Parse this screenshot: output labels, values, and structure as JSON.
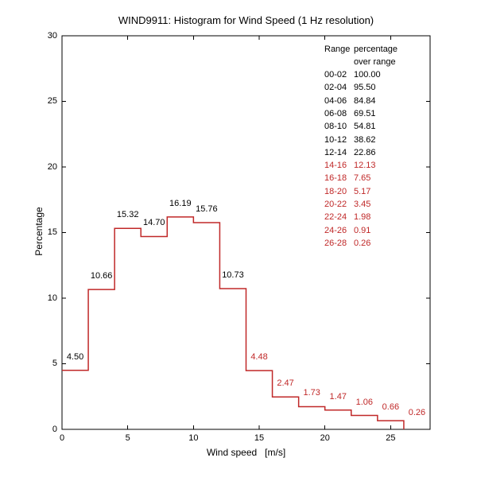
{
  "chart_data": {
    "type": "bar",
    "subtype": "stairs-histogram",
    "title": "WIND9911: Histogram for Wind Speed (1 Hz resolution)",
    "xlabel": "Wind speed   [m/s]",
    "ylabel": "Percentage",
    "xlim": [
      0,
      28
    ],
    "ylim": [
      0,
      30
    ],
    "xticks": [
      0,
      5,
      10,
      15,
      20,
      25
    ],
    "yticks": [
      0,
      5,
      10,
      15,
      20,
      25,
      30
    ],
    "grid": false,
    "bin_width": 2,
    "categories": [
      "00-02",
      "02-04",
      "04-06",
      "06-08",
      "08-10",
      "10-12",
      "12-14",
      "14-16",
      "16-18",
      "18-20",
      "20-22",
      "22-24",
      "24-26",
      "26-28"
    ],
    "values": [
      4.5,
      10.66,
      15.32,
      14.7,
      16.19,
      15.76,
      10.73,
      4.48,
      2.47,
      1.73,
      1.47,
      1.06,
      0.66,
      0.26
    ],
    "bar_labels": [
      "4.50",
      "10.66",
      "15.32",
      "14.70",
      "16.19",
      "15.76",
      "10.73",
      "4.48",
      "2.47",
      "1.73",
      "1.47",
      "1.06",
      "0.66",
      "0.26"
    ],
    "bar_label_colors": [
      "black",
      "black",
      "black",
      "black",
      "black",
      "black",
      "black",
      "red",
      "red",
      "red",
      "red",
      "red",
      "red",
      "red"
    ],
    "drawn_bins": 13,
    "line_color": "#c02828",
    "red_text_color": "#c02828",
    "black_text_color": "#000000",
    "legend_table": {
      "position": "top-right",
      "header_col1": "Range",
      "header_col2": "percentage",
      "header_line2": "over range",
      "rows": [
        {
          "range": "00-02",
          "value": "100.00",
          "color": "black"
        },
        {
          "range": "02-04",
          "value": "95.50",
          "color": "black"
        },
        {
          "range": "04-06",
          "value": "84.84",
          "color": "black"
        },
        {
          "range": "06-08",
          "value": "69.51",
          "color": "black"
        },
        {
          "range": "08-10",
          "value": "54.81",
          "color": "black"
        },
        {
          "range": "10-12",
          "value": "38.62",
          "color": "black"
        },
        {
          "range": "12-14",
          "value": "22.86",
          "color": "black"
        },
        {
          "range": "14-16",
          "value": "12.13",
          "color": "red"
        },
        {
          "range": "16-18",
          "value": "7.65",
          "color": "red"
        },
        {
          "range": "18-20",
          "value": "5.17",
          "color": "red"
        },
        {
          "range": "20-22",
          "value": "3.45",
          "color": "red"
        },
        {
          "range": "22-24",
          "value": "1.98",
          "color": "red"
        },
        {
          "range": "24-26",
          "value": "0.91",
          "color": "red"
        },
        {
          "range": "26-28",
          "value": "0.26",
          "color": "red"
        }
      ]
    }
  }
}
